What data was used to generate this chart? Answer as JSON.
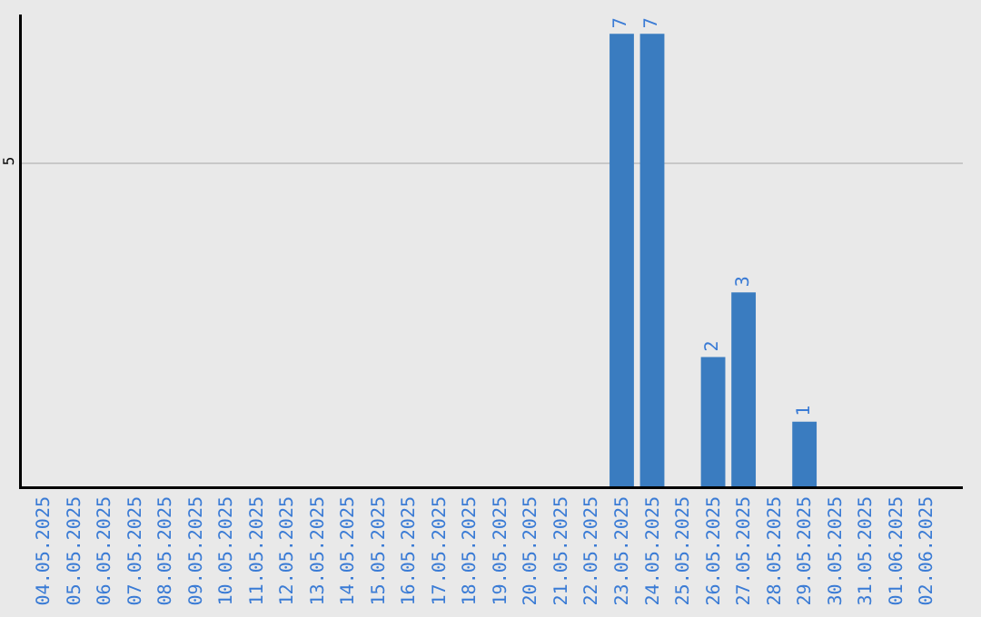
{
  "chart_data": {
    "type": "bar",
    "categories": [
      "04.05.2025",
      "05.05.2025",
      "06.05.2025",
      "07.05.2025",
      "08.05.2025",
      "09.05.2025",
      "10.05.2025",
      "11.05.2025",
      "12.05.2025",
      "13.05.2025",
      "14.05.2025",
      "15.05.2025",
      "16.05.2025",
      "17.05.2025",
      "18.05.2025",
      "19.05.2025",
      "20.05.2025",
      "21.05.2025",
      "22.05.2025",
      "23.05.2025",
      "24.05.2025",
      "25.05.2025",
      "26.05.2025",
      "27.05.2025",
      "28.05.2025",
      "29.05.2025",
      "30.05.2025",
      "31.05.2025",
      "01.06.2025",
      "02.06.2025"
    ],
    "values": [
      null,
      null,
      null,
      null,
      null,
      null,
      null,
      null,
      null,
      null,
      null,
      null,
      null,
      null,
      null,
      null,
      null,
      null,
      null,
      7,
      7,
      null,
      2,
      3,
      null,
      1,
      null,
      null,
      null,
      null
    ],
    "value_labels": [
      null,
      null,
      null,
      null,
      null,
      null,
      null,
      null,
      null,
      null,
      null,
      null,
      null,
      null,
      null,
      null,
      null,
      null,
      null,
      "7",
      "7",
      null,
      "2",
      "3",
      null,
      "1",
      null,
      null,
      null,
      null
    ],
    "color": "#3a7cc0",
    "ylim": [
      0,
      7.3
    ],
    "yticks": [
      5
    ],
    "grid": "y"
  }
}
